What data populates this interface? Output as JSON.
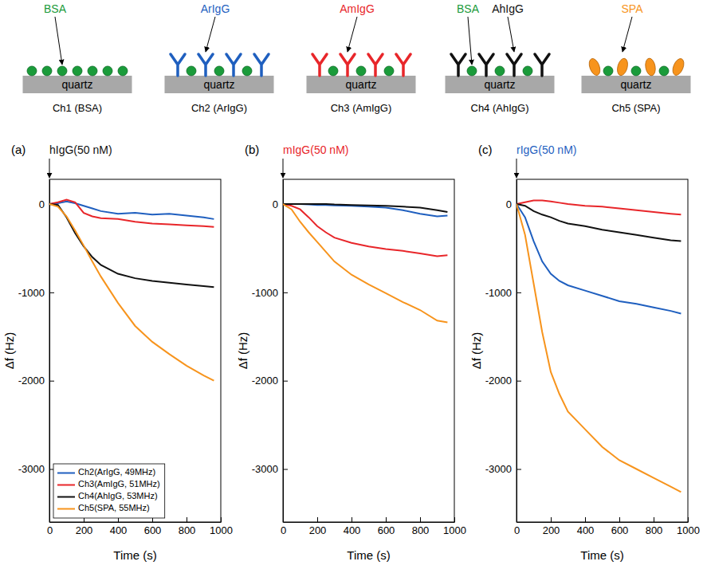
{
  "schematic": {
    "substrate": "quartz",
    "channels": [
      {
        "caption": "Ch1 (BSA)",
        "labels": [
          {
            "text": "BSA",
            "color": "#1a9b3a"
          }
        ]
      },
      {
        "caption": "Ch2 (ArIgG)",
        "labels": [
          {
            "text": "ArIgG",
            "color": "#1f5fbf"
          }
        ]
      },
      {
        "caption": "Ch3 (AmIgG)",
        "labels": [
          {
            "text": "AmIgG",
            "color": "#e8262a"
          }
        ]
      },
      {
        "caption": "Ch4 (AhIgG)",
        "labels": [
          {
            "text": "BSA",
            "color": "#1a9b3a"
          },
          {
            "text": "AhIgG",
            "color": "#111111"
          }
        ]
      },
      {
        "caption": "Ch5 (SPA)",
        "labels": [
          {
            "text": "SPA",
            "color": "#f7941d"
          }
        ]
      }
    ]
  },
  "chart_data": [
    {
      "type": "line",
      "panel": "(a)",
      "annotation": {
        "text": "hIgG(50 nM)",
        "x": 0,
        "color": "#111111"
      },
      "x_label": "Time (s)",
      "y_label": "Δf (Hz)",
      "xlim": [
        0,
        1000
      ],
      "xticks": [
        0,
        200,
        400,
        600,
        800,
        1000
      ],
      "ylim": [
        -3600,
        280
      ],
      "yticks": [
        -3000,
        -2000,
        -1000,
        0
      ],
      "legend": "lower left",
      "x": [
        0,
        50,
        100,
        150,
        200,
        250,
        300,
        400,
        500,
        600,
        700,
        800,
        900,
        960
      ],
      "series": [
        {
          "name": "Ch2(ArIgG, 49MHz)",
          "color": "#1f5fbf",
          "values": [
            0,
            10,
            30,
            10,
            -20,
            -50,
            -80,
            -110,
            -100,
            -120,
            -110,
            -130,
            -150,
            -170
          ]
        },
        {
          "name": "Ch3(AmIgG, 51MHz)",
          "color": "#e8262a",
          "values": [
            0,
            20,
            50,
            20,
            -100,
            -140,
            -160,
            -170,
            -200,
            -220,
            -230,
            -240,
            -250,
            -260
          ]
        },
        {
          "name": "Ch4(AhIgG, 53MHz)",
          "color": "#111111",
          "values": [
            0,
            -10,
            -150,
            -330,
            -480,
            -600,
            -690,
            -790,
            -840,
            -870,
            -890,
            -910,
            -930,
            -940
          ]
        },
        {
          "name": "Ch5(SPA, 55MHz)",
          "color": "#f7941d",
          "values": [
            0,
            -30,
            -140,
            -300,
            -470,
            -650,
            -820,
            -1120,
            -1380,
            -1560,
            -1700,
            -1830,
            -1940,
            -2000
          ]
        }
      ]
    },
    {
      "type": "line",
      "panel": "(b)",
      "annotation": {
        "text": "mIgG(50 nM)",
        "x": 0,
        "color": "#e8262a"
      },
      "x_label": "Time (s)",
      "y_label": "Δf (Hz)",
      "xlim": [
        0,
        1000
      ],
      "xticks": [
        0,
        200,
        400,
        600,
        800,
        1000
      ],
      "ylim": [
        -3600,
        280
      ],
      "yticks": [
        -3000,
        -2000,
        -1000,
        0
      ],
      "legend": false,
      "x": [
        0,
        50,
        100,
        150,
        200,
        250,
        300,
        400,
        500,
        600,
        700,
        800,
        900,
        960
      ],
      "series": [
        {
          "name": "Ch2(ArIgG, 49MHz)",
          "color": "#1f5fbf",
          "values": [
            0,
            0,
            0,
            -5,
            -10,
            -10,
            -15,
            -20,
            -30,
            -40,
            -70,
            -110,
            -140,
            -130
          ]
        },
        {
          "name": "Ch3(AmIgG, 51MHz)",
          "color": "#e8262a",
          "values": [
            0,
            -20,
            -60,
            -150,
            -250,
            -320,
            -380,
            -440,
            -480,
            -510,
            -530,
            -560,
            -590,
            -580
          ]
        },
        {
          "name": "Ch4(AhIgG, 53MHz)",
          "color": "#111111",
          "values": [
            0,
            0,
            0,
            0,
            0,
            0,
            -5,
            -10,
            -15,
            -20,
            -30,
            -40,
            -70,
            -90
          ]
        },
        {
          "name": "Ch5(SPA, 55MHz)",
          "color": "#f7941d",
          "values": [
            0,
            -60,
            -200,
            -320,
            -430,
            -540,
            -650,
            -800,
            -910,
            -1010,
            -1110,
            -1200,
            -1320,
            -1340
          ]
        }
      ]
    },
    {
      "type": "line",
      "panel": "(c)",
      "annotation": {
        "text": "rIgG(50 nM)",
        "x": 0,
        "color": "#1f5fbf"
      },
      "x_label": "Time (s)",
      "y_label": "Δf (Hz)",
      "xlim": [
        0,
        1000
      ],
      "xticks": [
        0,
        200,
        400,
        600,
        800,
        1000
      ],
      "ylim": [
        -3600,
        280
      ],
      "yticks": [
        -3000,
        -2000,
        -1000,
        0
      ],
      "legend": false,
      "x": [
        0,
        50,
        100,
        150,
        200,
        250,
        300,
        400,
        500,
        600,
        700,
        800,
        900,
        960
      ],
      "series": [
        {
          "name": "Ch2(ArIgG, 49MHz)",
          "color": "#1f5fbf",
          "values": [
            0,
            -150,
            -420,
            -650,
            -790,
            -870,
            -920,
            -980,
            -1040,
            -1100,
            -1130,
            -1170,
            -1210,
            -1240
          ]
        },
        {
          "name": "Ch3(AmIgG, 51MHz)",
          "color": "#e8262a",
          "values": [
            0,
            20,
            40,
            40,
            30,
            15,
            0,
            -20,
            -30,
            -50,
            -70,
            -90,
            -110,
            -120
          ]
        },
        {
          "name": "Ch4(AhIgG, 53MHz)",
          "color": "#111111",
          "values": [
            0,
            -20,
            -80,
            -120,
            -150,
            -190,
            -220,
            -250,
            -290,
            -320,
            -350,
            -380,
            -410,
            -420
          ]
        },
        {
          "name": "Ch5(SPA, 55MHz)",
          "color": "#f7941d",
          "values": [
            0,
            -350,
            -900,
            -1450,
            -1900,
            -2150,
            -2350,
            -2550,
            -2750,
            -2900,
            -3000,
            -3100,
            -3200,
            -3260
          ]
        }
      ]
    }
  ]
}
